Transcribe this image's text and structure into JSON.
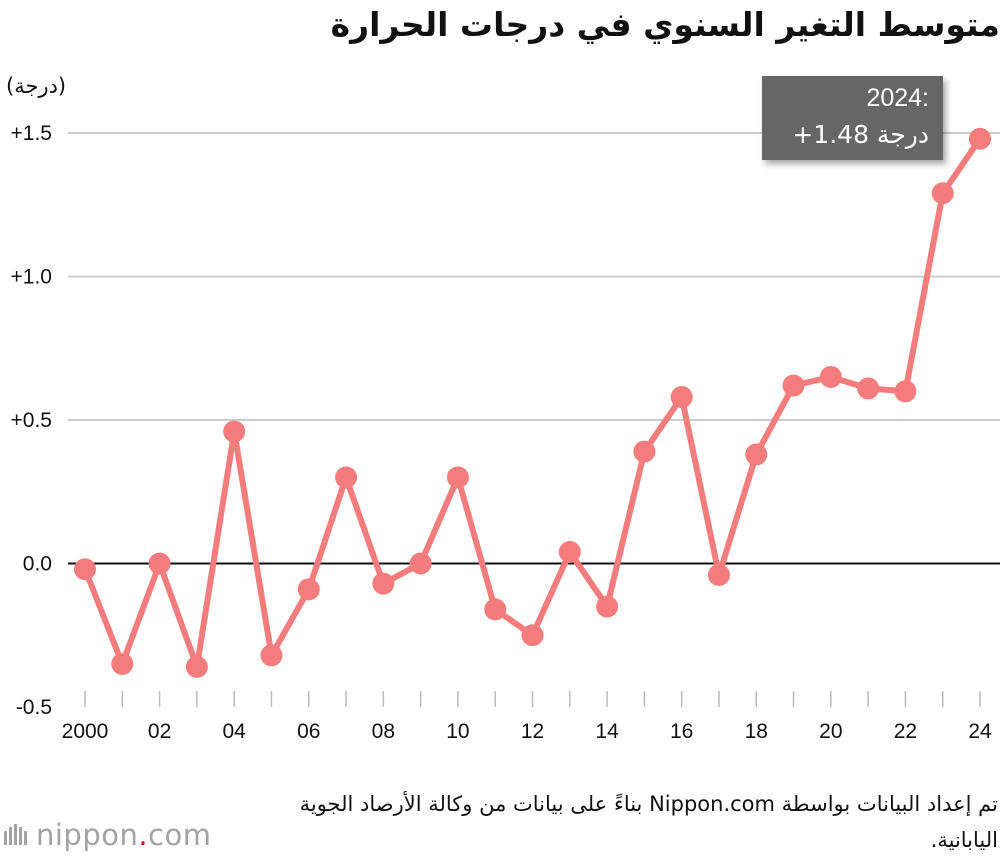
{
  "title": "متوسط التغير السنوي في درجات الحرارة",
  "unit_label": "(درجة)",
  "tooltip": {
    "year": "2024:",
    "value": "+1.48 درجة"
  },
  "source_text": "تم إعداد البيانات بواسطة Nippon.com بناءً على بيانات من وكالة الأرصاد الجوية اليابانية.",
  "logo": {
    "name": "nippon",
    "dot": ".",
    "suffix": "com"
  },
  "colors": {
    "line": "#f47c7c",
    "grid": "#cccccc",
    "zero_line": "#111111",
    "tooltip_bg": "#666666",
    "logo_grey": "#a3a3a3",
    "logo_red": "#e4002b"
  },
  "chart_data": {
    "type": "line",
    "title": "متوسط التغير السنوي في درجات الحرارة",
    "ylabel": "(درجة)",
    "xlabel": "",
    "ylim": [
      -0.5,
      1.5
    ],
    "yticks": [
      1.5,
      1.0,
      0.5,
      0.0,
      -0.5
    ],
    "ytick_labels": [
      "+1.5",
      "+1.0",
      "+0.5",
      "0.0",
      "-0.5"
    ],
    "xticks": [
      2000,
      2002,
      2004,
      2006,
      2008,
      2010,
      2012,
      2014,
      2016,
      2018,
      2020,
      2022,
      2024
    ],
    "xtick_labels": [
      "2000",
      "02",
      "04",
      "06",
      "08",
      "10",
      "12",
      "14",
      "16",
      "18",
      "20",
      "22",
      "24"
    ],
    "xlim": [
      2000,
      2024
    ],
    "grid": true,
    "series": [
      {
        "name": "التغير السنوي",
        "x": [
          2000,
          2001,
          2002,
          2003,
          2004,
          2005,
          2006,
          2007,
          2008,
          2009,
          2010,
          2011,
          2012,
          2013,
          2014,
          2015,
          2016,
          2017,
          2018,
          2019,
          2020,
          2021,
          2022,
          2023,
          2024
        ],
        "values": [
          -0.02,
          -0.35,
          0.0,
          -0.36,
          0.46,
          -0.32,
          -0.09,
          0.3,
          -0.07,
          0.0,
          0.3,
          -0.16,
          -0.25,
          0.04,
          -0.15,
          0.39,
          0.58,
          -0.04,
          0.38,
          0.62,
          0.65,
          0.61,
          0.6,
          1.29,
          1.48
        ]
      }
    ]
  }
}
